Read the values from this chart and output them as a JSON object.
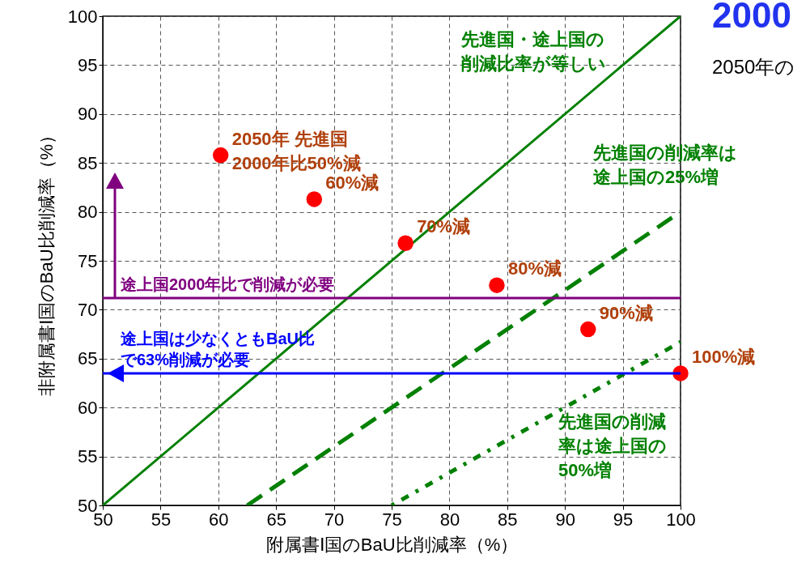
{
  "chart_data": {
    "type": "scatter",
    "xlabel": "附属書Ⅰ国のBaU比削減率（%）",
    "ylabel": "非附属書Ⅰ国のBaU比削減率（%）",
    "xlim": [
      50,
      100
    ],
    "ylim": [
      50,
      100
    ],
    "xticks": [
      50,
      55,
      60,
      65,
      70,
      75,
      80,
      85,
      90,
      95,
      100
    ],
    "yticks": [
      50,
      55,
      60,
      65,
      70,
      75,
      80,
      85,
      90,
      95,
      100
    ],
    "grid": true,
    "series": [
      {
        "type": "line",
        "color": "#008000",
        "line_style": "solid",
        "x": [
          50,
          100
        ],
        "values": [
          50,
          100
        ]
      },
      {
        "type": "line",
        "color": "#008000",
        "line_style": "dashed",
        "x": [
          62.5,
          100
        ],
        "values": [
          50,
          80
        ]
      },
      {
        "type": "line",
        "color": "#008000",
        "line_style": "dotted",
        "x": [
          75,
          100
        ],
        "values": [
          50,
          66.7
        ]
      },
      {
        "color": "#ff0000",
        "marker": "circle",
        "x": [
          60.2,
          68.3,
          76.2,
          84.1,
          92,
          100
        ],
        "values": [
          85.8,
          81.3,
          76.8,
          72.5,
          68,
          63.5
        ]
      }
    ],
    "ref_lines": [
      {
        "axis": "y",
        "value": 71.2,
        "label": "途上国2000年比で削減が必要",
        "color": "#800080"
      },
      {
        "axis": "y",
        "value": 63.5,
        "label": "途上国は少なくともBaU比で63%削減が必要",
        "color": "#0000ff"
      }
    ],
    "annotations": [
      "先進国・途上国の削減比率が等しい",
      "先進国の削減率は途上国の25%増",
      "先進国の削減率は途上国の50%増",
      {
        "text": "2050年 先進国\n2000年比50%減",
        "x": 60.2,
        "y": 85.8
      },
      {
        "text": "60%減",
        "x": 68.3,
        "y": 81.3
      },
      {
        "text": "70%減",
        "x": 76.2,
        "y": 76.8
      },
      {
        "text": "80%減",
        "x": 84.1,
        "y": 72.5
      },
      {
        "text": "90%減",
        "x": 92,
        "y": 68
      },
      {
        "text": "100%減",
        "x": 100,
        "y": 63.5
      },
      "2000",
      "2050年の"
    ]
  }
}
